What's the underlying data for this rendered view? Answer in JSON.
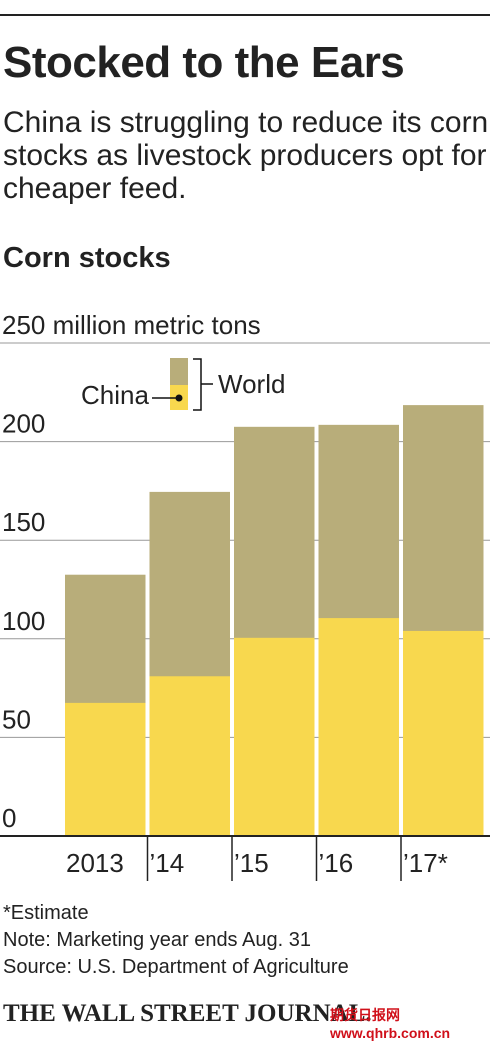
{
  "chart_data": {
    "type": "overlap_bar",
    "title": "Stocked to the Ears",
    "subtitle": "China is struggling to reduce its corn stocks as livestock producers opt for cheaper feed.",
    "chart_label": "Corn stocks",
    "categories": [
      "2013",
      "’14",
      "’15",
      "’16",
      "’17*"
    ],
    "series": [
      {
        "name": "World",
        "color": "#b8ad7a",
        "values": [
          132.5,
          174.5,
          207.5,
          208.5,
          218.5
        ]
      },
      {
        "name": "China",
        "color": "#f8d84e",
        "values": [
          67.5,
          81,
          100.5,
          110.5,
          104
        ]
      }
    ],
    "ylim": [
      0,
      250
    ],
    "yticks": [
      0,
      50,
      100,
      150,
      200,
      {
        "value": 250,
        "label": "250 million metric tons"
      }
    ],
    "grid": true,
    "footnote": "*Estimate",
    "note": "Note: Marketing year ends Aug. 31",
    "source": "Source: U.S. Department of Agriculture",
    "brand": "THE WALL STREET JOURNAL.",
    "watermark": "期货日报网 www.qhrb.com.cn"
  }
}
